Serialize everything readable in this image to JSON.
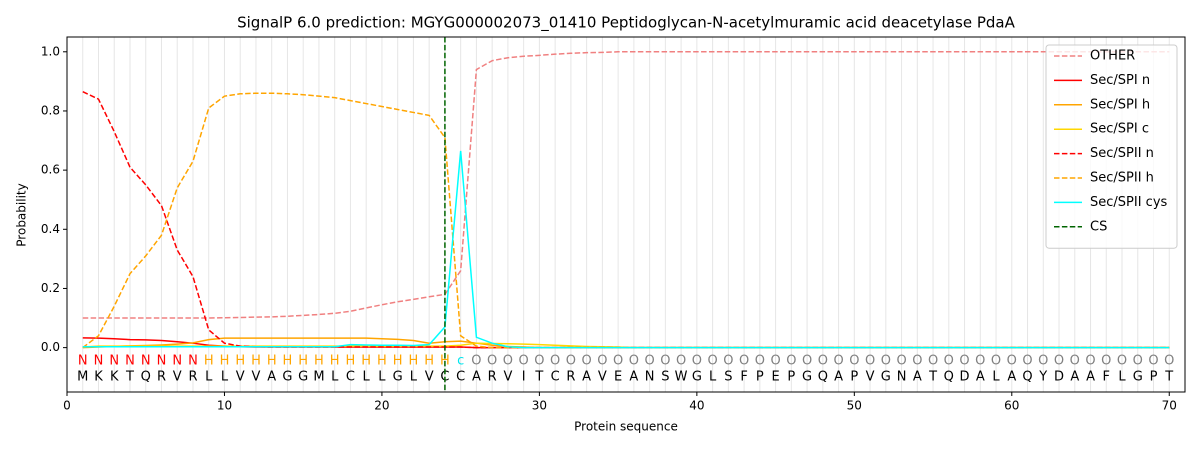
{
  "chart_data": {
    "type": "line",
    "title": "SignalP 6.0 prediction: MGYG000002073_01410 Peptidoglycan-N-acetylmuramic acid deacetylase PdaA",
    "xlabel": "Protein sequence",
    "ylabel": "Probability",
    "x": [
      1,
      2,
      3,
      4,
      5,
      6,
      7,
      8,
      9,
      10,
      11,
      12,
      13,
      14,
      15,
      16,
      17,
      18,
      19,
      20,
      21,
      22,
      23,
      24,
      25,
      26,
      27,
      28,
      29,
      30,
      31,
      32,
      33,
      34,
      35,
      36,
      37,
      38,
      39,
      40,
      41,
      42,
      43,
      44,
      45,
      46,
      47,
      48,
      49,
      50,
      51,
      52,
      53,
      54,
      55,
      56,
      57,
      58,
      59,
      60,
      61,
      62,
      63,
      64,
      65,
      66,
      67,
      68,
      69,
      70
    ],
    "sequence": [
      "M",
      "K",
      "K",
      "T",
      "Q",
      "R",
      "V",
      "R",
      "L",
      "L",
      "V",
      "V",
      "A",
      "G",
      "G",
      "M",
      "L",
      "C",
      "L",
      "L",
      "G",
      "L",
      "V",
      "C",
      "C",
      "A",
      "R",
      "V",
      "I",
      "T",
      "C",
      "R",
      "A",
      "V",
      "E",
      "A",
      "N",
      "S",
      "W",
      "G",
      "L",
      "S",
      "F",
      "P",
      "E",
      "P",
      "G",
      "Q",
      "A",
      "P",
      "V",
      "G",
      "N",
      "A",
      "T",
      "Q",
      "D",
      "A",
      "L",
      "A",
      "Q",
      "Y",
      "D",
      "A",
      "A",
      "F",
      "L",
      "G",
      "P",
      "T"
    ],
    "labels": [
      "N",
      "N",
      "N",
      "N",
      "N",
      "N",
      "N",
      "N",
      "H",
      "H",
      "H",
      "H",
      "H",
      "H",
      "H",
      "H",
      "H",
      "H",
      "H",
      "H",
      "H",
      "H",
      "H",
      "H",
      "c",
      "O",
      "O",
      "O",
      "O",
      "O",
      "O",
      "O",
      "O",
      "O",
      "O",
      "O",
      "O",
      "O",
      "O",
      "O",
      "O",
      "O",
      "O",
      "O",
      "O",
      "O",
      "O",
      "O",
      "O",
      "O",
      "O",
      "O",
      "O",
      "O",
      "O",
      "O",
      "O",
      "O",
      "O",
      "O",
      "O",
      "O",
      "O",
      "O",
      "O",
      "O",
      "O",
      "O",
      "O",
      "O"
    ],
    "label_colors": {
      "N": "#ff0000",
      "H": "#ffa500",
      "c": "#00e5ee",
      "O": "#808080"
    },
    "series": [
      {
        "name": "OTHER",
        "color": "#f08080",
        "dashed": true,
        "values": [
          0.1,
          0.1,
          0.1,
          0.1,
          0.1,
          0.1,
          0.1,
          0.1,
          0.1,
          0.101,
          0.102,
          0.103,
          0.104,
          0.106,
          0.109,
          0.112,
          0.116,
          0.123,
          0.134,
          0.145,
          0.155,
          0.163,
          0.172,
          0.18,
          0.26,
          0.94,
          0.97,
          0.98,
          0.985,
          0.988,
          0.992,
          0.995,
          0.997,
          0.998,
          1.0,
          1.0,
          1.0,
          1.0,
          1.0,
          1.0,
          1.0,
          1.0,
          1.0,
          1.0,
          1.0,
          1.0,
          1.0,
          1.0,
          1.0,
          1.0,
          1.0,
          1.0,
          1.0,
          1.0,
          1.0,
          1.0,
          1.0,
          1.0,
          1.0,
          1.0,
          1.0,
          1.0,
          1.0,
          1.0,
          1.0,
          1.0,
          1.0,
          1.0,
          1.0,
          1.0
        ]
      },
      {
        "name": "Sec/SPI n",
        "color": "#ff0000",
        "dashed": false,
        "values": [
          0.033,
          0.032,
          0.03,
          0.027,
          0.026,
          0.024,
          0.02,
          0.015,
          0.008,
          0.005,
          0.003,
          0.002,
          0.002,
          0.002,
          0.002,
          0.002,
          0.002,
          0.002,
          0.002,
          0.002,
          0.002,
          0.002,
          0.002,
          0.002,
          0.002,
          0,
          0,
          0,
          0,
          0,
          0,
          0,
          0,
          0,
          0,
          0,
          0,
          0,
          0,
          0,
          0,
          0,
          0,
          0,
          0,
          0,
          0,
          0,
          0,
          0,
          0,
          0,
          0,
          0,
          0,
          0,
          0,
          0,
          0,
          0,
          0,
          0,
          0,
          0,
          0,
          0,
          0,
          0,
          0,
          0
        ]
      },
      {
        "name": "Sec/SPI h",
        "color": "#ffa500",
        "dashed": false,
        "values": [
          0,
          0.002,
          0.004,
          0.006,
          0.007,
          0.009,
          0.012,
          0.016,
          0.027,
          0.032,
          0.032,
          0.032,
          0.032,
          0.032,
          0.032,
          0.032,
          0.032,
          0.032,
          0.032,
          0.03,
          0.028,
          0.024,
          0.015,
          0.02,
          0.022,
          0.015,
          0.008,
          0.004,
          0.002,
          0,
          0,
          0,
          0,
          0,
          0,
          0,
          0,
          0,
          0,
          0,
          0,
          0,
          0,
          0,
          0,
          0,
          0,
          0,
          0,
          0,
          0,
          0,
          0,
          0,
          0,
          0,
          0,
          0,
          0,
          0,
          0,
          0,
          0,
          0,
          0,
          0,
          0,
          0,
          0,
          0
        ]
      },
      {
        "name": "Sec/SPI c",
        "color": "#ffd700",
        "dashed": false,
        "values": [
          0.002,
          0.005,
          0.005,
          0.005,
          0.005,
          0.005,
          0.005,
          0.005,
          0.005,
          0.005,
          0.005,
          0.005,
          0.005,
          0.005,
          0.005,
          0.005,
          0.005,
          0.005,
          0.005,
          0.005,
          0.005,
          0.005,
          0.005,
          0.005,
          0.008,
          0.015,
          0.014,
          0.013,
          0.012,
          0.01,
          0.008,
          0.006,
          0.004,
          0.003,
          0.002,
          0,
          0,
          0,
          0,
          0,
          0,
          0,
          0,
          0,
          0,
          0,
          0,
          0,
          0,
          0,
          0,
          0,
          0,
          0,
          0,
          0,
          0,
          0,
          0,
          0,
          0,
          0,
          0,
          0,
          0,
          0,
          0,
          0,
          0,
          0
        ]
      },
      {
        "name": "Sec/SPII n",
        "color": "#ff0000",
        "dashed": true,
        "values": [
          0.865,
          0.84,
          0.73,
          0.61,
          0.55,
          0.48,
          0.33,
          0.24,
          0.06,
          0.015,
          0.005,
          0.003,
          0.002,
          0.002,
          0.002,
          0.002,
          0.002,
          0.002,
          0.002,
          0.002,
          0.002,
          0.002,
          0.002,
          0.002,
          0.002,
          0,
          0,
          0,
          0,
          0,
          0,
          0,
          0,
          0,
          0,
          0,
          0,
          0,
          0,
          0,
          0,
          0,
          0,
          0,
          0,
          0,
          0,
          0,
          0,
          0,
          0,
          0,
          0,
          0,
          0,
          0,
          0,
          0,
          0,
          0,
          0,
          0,
          0,
          0,
          0,
          0,
          0,
          0,
          0,
          0
        ]
      },
      {
        "name": "Sec/SPII h",
        "color": "#ffa500",
        "dashed": true,
        "values": [
          0,
          0.04,
          0.14,
          0.25,
          0.31,
          0.38,
          0.54,
          0.63,
          0.81,
          0.85,
          0.858,
          0.86,
          0.86,
          0.858,
          0.855,
          0.85,
          0.845,
          0.835,
          0.825,
          0.815,
          0.805,
          0.795,
          0.785,
          0.71,
          0.04,
          0.005,
          0,
          0,
          0,
          0,
          0,
          0,
          0,
          0,
          0,
          0,
          0,
          0,
          0,
          0,
          0,
          0,
          0,
          0,
          0,
          0,
          0,
          0,
          0,
          0,
          0,
          0,
          0,
          0,
          0,
          0,
          0,
          0,
          0,
          0,
          0,
          0,
          0,
          0,
          0,
          0,
          0,
          0,
          0,
          0
        ]
      },
      {
        "name": "Sec/SPII cys",
        "color": "#00ffff",
        "dashed": false,
        "values": [
          0.003,
          0.003,
          0.003,
          0.003,
          0.003,
          0.003,
          0.003,
          0.003,
          0.003,
          0.003,
          0.003,
          0.003,
          0.003,
          0.003,
          0.003,
          0.003,
          0.003,
          0.01,
          0.009,
          0.008,
          0.008,
          0.007,
          0.01,
          0.07,
          0.665,
          0.035,
          0.015,
          0.003,
          0,
          0,
          0,
          0,
          0,
          0,
          0,
          0,
          0,
          0,
          0,
          0,
          0,
          0,
          0,
          0,
          0,
          0,
          0,
          0,
          0,
          0,
          0,
          0,
          0,
          0,
          0,
          0,
          0,
          0,
          0,
          0,
          0,
          0,
          0,
          0,
          0,
          0,
          0,
          0,
          0,
          0
        ]
      }
    ],
    "cs": {
      "name": "CS",
      "color": "#006400",
      "x": 24
    },
    "xlim": [
      0,
      71
    ],
    "ylim": [
      -0.15,
      1.05
    ],
    "xticks": [
      0,
      10,
      20,
      30,
      40,
      50,
      60,
      70
    ],
    "yticks": [
      {
        "value": 0,
        "label": "0.0"
      },
      {
        "value": 0.2,
        "label": "0.2"
      },
      {
        "value": 0.4,
        "label": "0.4"
      },
      {
        "value": 0.6,
        "label": "0.6"
      },
      {
        "value": 0.8,
        "label": "0.8"
      },
      {
        "value": 1,
        "label": "1.0"
      }
    ],
    "residue_grid": true,
    "legend": "upper right"
  }
}
